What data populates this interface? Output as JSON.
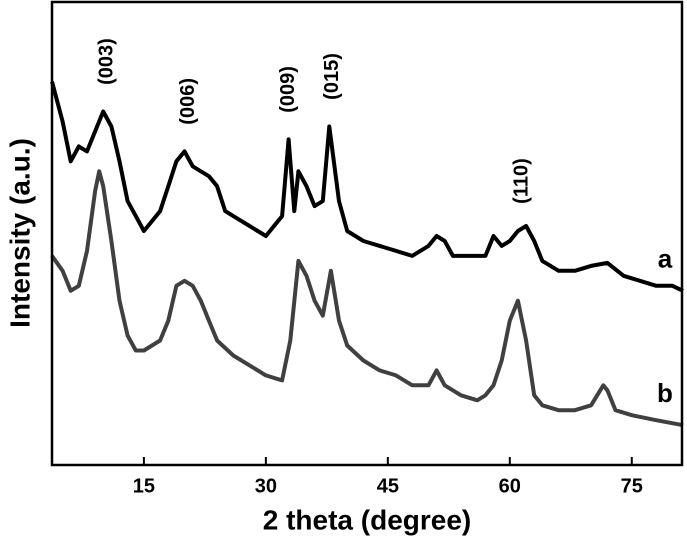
{
  "chart_data": {
    "type": "line",
    "xlabel": "2 theta (degree)",
    "ylabel": "Intensity (a.u.)",
    "xlim": [
      3.7,
      81.3
    ],
    "xticks": [
      15,
      30,
      45,
      60,
      75
    ],
    "ylim": [
      0,
      465
    ],
    "series": [
      {
        "name": "a",
        "color": "#000000",
        "x": [
          3.7,
          5,
          6,
          7,
          8,
          9,
          10,
          11,
          12,
          13,
          14,
          15,
          16,
          17,
          18,
          19,
          20,
          21,
          22,
          23,
          24,
          25,
          26,
          27,
          28,
          29,
          30,
          31,
          32,
          32.8,
          33.5,
          34,
          35,
          36,
          37,
          37.8,
          39,
          40,
          41,
          42,
          44,
          46,
          48,
          50,
          51,
          52,
          53,
          55,
          57,
          58,
          59,
          60,
          61,
          62,
          63,
          64,
          66,
          68,
          70,
          72,
          74,
          76,
          78,
          80,
          81.3
        ],
        "values": [
          385,
          345,
          305,
          320,
          315,
          335,
          355,
          340,
          305,
          265,
          250,
          235,
          245,
          255,
          280,
          305,
          315,
          300,
          295,
          290,
          280,
          255,
          250,
          245,
          240,
          235,
          230,
          240,
          250,
          327,
          255,
          295,
          280,
          260,
          265,
          340,
          265,
          235,
          230,
          225,
          220,
          215,
          210,
          220,
          230,
          225,
          210,
          210,
          210,
          230,
          220,
          225,
          235,
          240,
          225,
          205,
          195,
          195,
          200,
          203,
          190,
          185,
          180,
          180,
          175
        ]
      },
      {
        "name": "b",
        "color": "#404040",
        "x": [
          3.7,
          5,
          6,
          7,
          8,
          9,
          9.5,
          10,
          11,
          12,
          13,
          14,
          15,
          16,
          17,
          18,
          19,
          20,
          21,
          22,
          23,
          24,
          26,
          28,
          30,
          32,
          33,
          34,
          35,
          36,
          37,
          38,
          39,
          40,
          42,
          44,
          46,
          48,
          50,
          51,
          52,
          54,
          56,
          57,
          58,
          59,
          60,
          61,
          62,
          63,
          64,
          66,
          68,
          70,
          71.5,
          72,
          73,
          75,
          78,
          81.3
        ],
        "values": [
          210,
          195,
          175,
          180,
          215,
          275,
          295,
          280,
          225,
          165,
          130,
          115,
          115,
          120,
          125,
          145,
          180,
          185,
          180,
          165,
          145,
          125,
          110,
          100,
          90,
          85,
          125,
          205,
          190,
          165,
          150,
          195,
          145,
          120,
          105,
          95,
          90,
          80,
          80,
          95,
          80,
          70,
          65,
          70,
          80,
          105,
          145,
          165,
          125,
          70,
          60,
          55,
          55,
          60,
          80,
          75,
          55,
          50,
          45,
          40
        ]
      }
    ],
    "annotations": [
      {
        "text": "(003)",
        "x": 10.5
      },
      {
        "text": "(006)",
        "x": 20.5
      },
      {
        "text": "(009)",
        "x": 32.8
      },
      {
        "text": "(015)",
        "x": 38.2
      },
      {
        "text": "(110)",
        "x": 61.5
      }
    ]
  }
}
